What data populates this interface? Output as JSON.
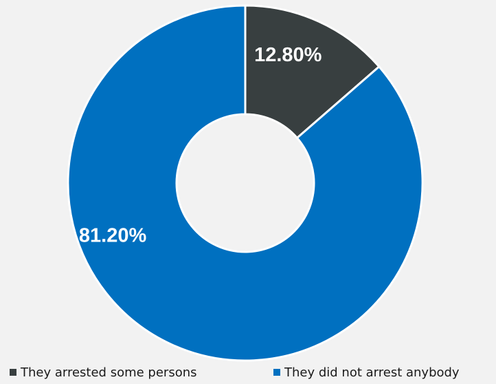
{
  "chart_data": {
    "type": "pie",
    "title": "",
    "slices": [
      {
        "label": "They arrested some persons",
        "value": 12.8,
        "display": "12.80%",
        "color": "#383f40"
      },
      {
        "label": "They did not arrest anybody",
        "value": 81.2,
        "display": "81.20%",
        "color": "#0070c0"
      }
    ],
    "donut": true,
    "legend_position": "bottom",
    "separator_color": "#ffffff",
    "label_color": "#ffffff"
  }
}
